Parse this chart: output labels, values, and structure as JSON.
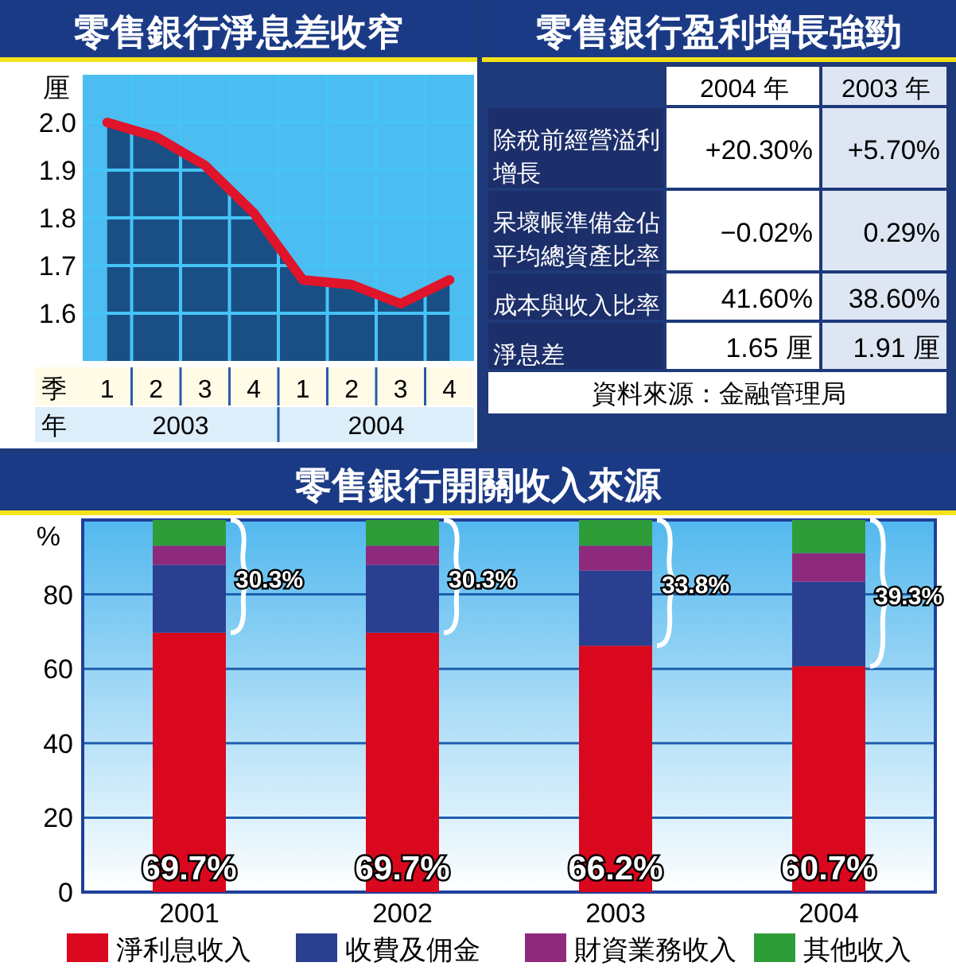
{
  "chart_data": [
    {
      "type": "area",
      "title": "零售銀行淨息差收窄",
      "ylabel": "厘",
      "categories": [
        "1",
        "2",
        "3",
        "4",
        "1",
        "2",
        "3",
        "4"
      ],
      "annotations": [
        "季",
        "年",
        "2003",
        "2004"
      ],
      "series": [
        {
          "type": "area",
          "color": "#1a4f86",
          "values": [
            2.0,
            1.97,
            1.91,
            1.81,
            1.67,
            1.66,
            1.62,
            1.67
          ]
        },
        {
          "type": "line",
          "color": "#e0142a",
          "values": [
            2.0,
            1.97,
            1.91,
            1.81,
            1.67,
            1.66,
            1.62,
            1.67
          ]
        }
      ],
      "ylim": [
        1.5,
        2.1
      ],
      "yticks": [
        1.6,
        1.7,
        1.8,
        1.9,
        {
          "value": 2,
          "label": "2.0"
        }
      ],
      "grid": true
    },
    {
      "type": "other",
      "title": "零售銀行盈利增長強勁",
      "annotations": [
        "2004 年",
        "2003 年",
        "除稅前經營溢利增長",
        "+20.30%",
        "+5.70%",
        "呆壞帳準備金佔平均總資產比率",
        "−0.02%",
        "0.29%",
        "成本與收入比率",
        "41.60%",
        "38.60%",
        "淨息差",
        "1.65 厘",
        "1.91 厘",
        "資料來源：金融管理局"
      ]
    },
    {
      "type": "bar",
      "stacked": true,
      "title": "零售銀行開關收入來源",
      "ylabel": "%",
      "categories": [
        "2001",
        "2002",
        "2003",
        "2004"
      ],
      "series": [
        {
          "name": "淨利息收入",
          "color": "#d9081e",
          "values": [
            69.7,
            69.7,
            66.2,
            60.7
          ],
          "value_labels": [
            "69.7%",
            "69.7%",
            "66.2%",
            "60.7%"
          ]
        },
        {
          "name": "收費及佣金",
          "color": "#2b3f90",
          "values": [
            18.2,
            18.2,
            20.2,
            22.7
          ]
        },
        {
          "name": "財資業務收入",
          "color": "#8e2a7c",
          "values": [
            5.2,
            5.2,
            6.7,
            7.7
          ]
        },
        {
          "name": "其他收入",
          "color": "#2f9c3a",
          "values": [
            6.9,
            6.9,
            6.9,
            8.9
          ]
        }
      ],
      "annotations": [
        {
          "text": "30.3%",
          "x": "2001",
          "y": 87.9
        },
        {
          "text": "30.3%",
          "x": "2002",
          "y": 87.9
        },
        {
          "text": "33.8%",
          "x": "2003",
          "y": 86.4
        },
        {
          "text": "39.3%",
          "x": "2004",
          "y": 83.4
        }
      ],
      "ylim": [
        0,
        100
      ],
      "yticks": [
        0,
        20,
        40,
        60,
        80
      ],
      "grid": "y",
      "legend": "bottom"
    }
  ]
}
